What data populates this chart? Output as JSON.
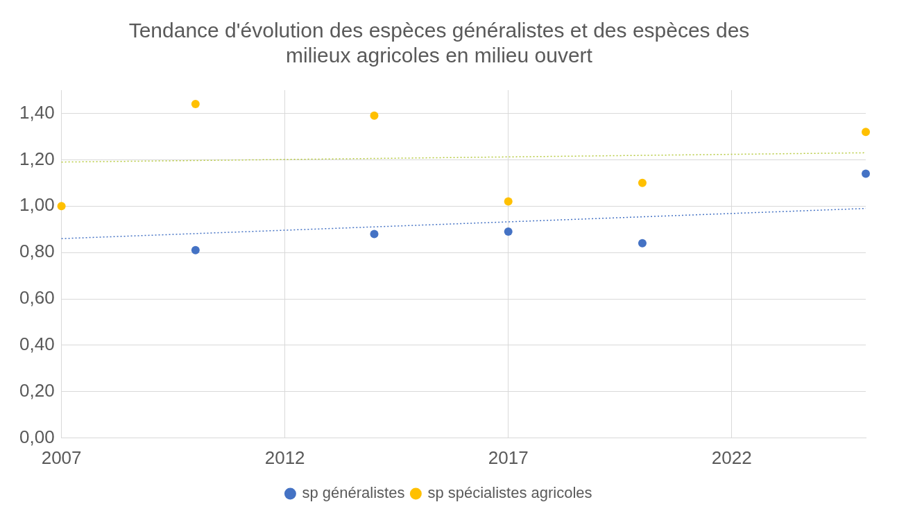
{
  "chart_data": {
    "type": "scatter",
    "title": "Tendance d'évolution des espèces généralistes et des espèces des milieux agricoles en milieu ouvert",
    "xlim": [
      2007,
      2025
    ],
    "xticks": [
      2007,
      2012,
      2017,
      2022
    ],
    "ylim": [
      0,
      1.5
    ],
    "yticks": [
      {
        "value": 0,
        "label": "0,00"
      },
      {
        "value": 0.2,
        "label": "0,20"
      },
      {
        "value": 0.4,
        "label": "0,40"
      },
      {
        "value": 0.6,
        "label": "0,60"
      },
      {
        "value": 0.8,
        "label": "0,80"
      },
      {
        "value": 1,
        "label": "1,00"
      },
      {
        "value": 1.2,
        "label": "1,20"
      },
      {
        "value": 1.4,
        "label": "1,40"
      }
    ],
    "grid": true,
    "legend": "bottom",
    "series": [
      {
        "name": "sp généralistes",
        "type": "scatter",
        "marker": "circle",
        "color": "#4472c4",
        "x": [
          2010,
          2014,
          2017,
          2020,
          2025
        ],
        "values": [
          0.81,
          0.88,
          0.89,
          0.84,
          1.14
        ]
      },
      {
        "name": "sp spécialistes agricoles",
        "type": "scatter",
        "marker": "circle",
        "color": "#ffc000",
        "x": [
          2007,
          2010,
          2014,
          2017,
          2020,
          2025
        ],
        "values": [
          1.0,
          1.44,
          1.39,
          1.02,
          1.1,
          1.32
        ]
      },
      {
        "type": "line",
        "marker": "none",
        "line_style": "dotted",
        "color": "#4472c4",
        "x": [
          2007,
          2025
        ],
        "values": [
          0.86,
          0.99
        ]
      },
      {
        "type": "line",
        "marker": "none",
        "line_style": "dotted",
        "color": "#b5c93c",
        "x": [
          2007,
          2025
        ],
        "values": [
          1.19,
          1.23
        ]
      }
    ]
  }
}
